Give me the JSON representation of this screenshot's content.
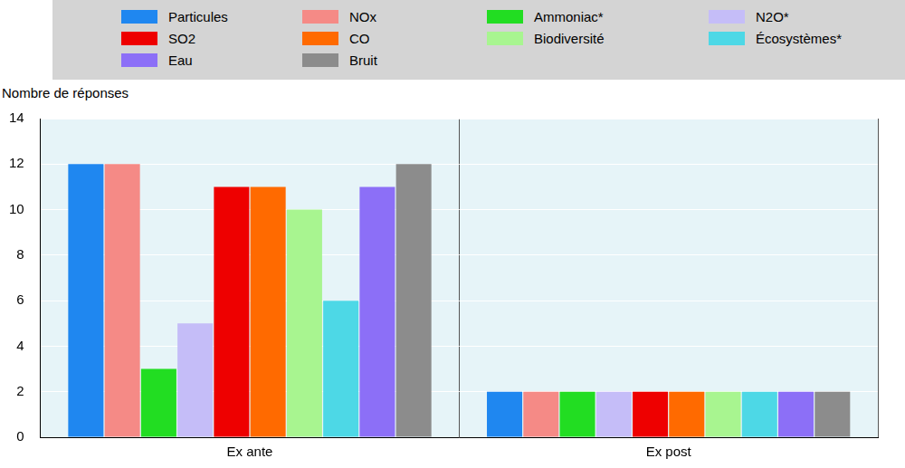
{
  "chart_data": {
    "type": "bar",
    "y_label": "Nombre de réponses",
    "categories": [
      "Ex ante",
      "Ex post"
    ],
    "series": [
      {
        "name": "Particules",
        "color": "#1f87f0",
        "values": [
          12,
          2
        ]
      },
      {
        "name": "NOx",
        "color": "#f58a86",
        "values": [
          12,
          2
        ]
      },
      {
        "name": "Ammoniac*",
        "color": "#22dd22",
        "values": [
          3,
          2
        ]
      },
      {
        "name": "N2O*",
        "color": "#c5bdf8",
        "values": [
          5,
          2
        ]
      },
      {
        "name": "SO2",
        "color": "#ee0000",
        "values": [
          11,
          2
        ]
      },
      {
        "name": "CO",
        "color": "#ff6a00",
        "values": [
          11,
          2
        ]
      },
      {
        "name": "Biodiversité",
        "color": "#a8f590",
        "values": [
          10,
          2
        ]
      },
      {
        "name": "Écosystèmes*",
        "color": "#4dd8e6",
        "values": [
          6,
          2
        ]
      },
      {
        "name": "Eau",
        "color": "#8c6ff7",
        "values": [
          11,
          2
        ]
      },
      {
        "name": "Bruit",
        "color": "#8c8c8c",
        "values": [
          12,
          2
        ]
      }
    ],
    "ylim": [
      0,
      14
    ],
    "yticks": [
      0,
      2,
      4,
      6,
      8,
      10,
      12,
      14
    ],
    "grid": true,
    "legend": "top"
  }
}
